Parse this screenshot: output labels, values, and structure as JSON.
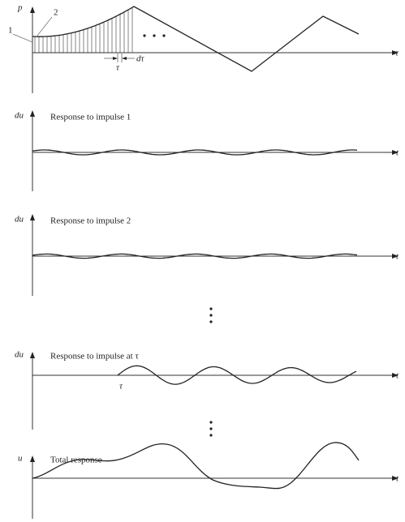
{
  "panels": [
    {
      "axis_label": "p",
      "time_label": "τ",
      "impulse_labels": [
        "1",
        "2"
      ],
      "tau_label": "τ",
      "dtau_label": "dτ"
    },
    {
      "axis_label": "du",
      "title": "Response to impulse 1",
      "time_label": "t"
    },
    {
      "axis_label": "du",
      "title": "Response to impulse 2",
      "time_label": "t"
    },
    {
      "axis_label": "du",
      "title": "Response to impulse at τ",
      "time_label": "t",
      "tau_label": "τ"
    },
    {
      "axis_label": "u",
      "title": "Total response",
      "time_label": "t"
    }
  ]
}
